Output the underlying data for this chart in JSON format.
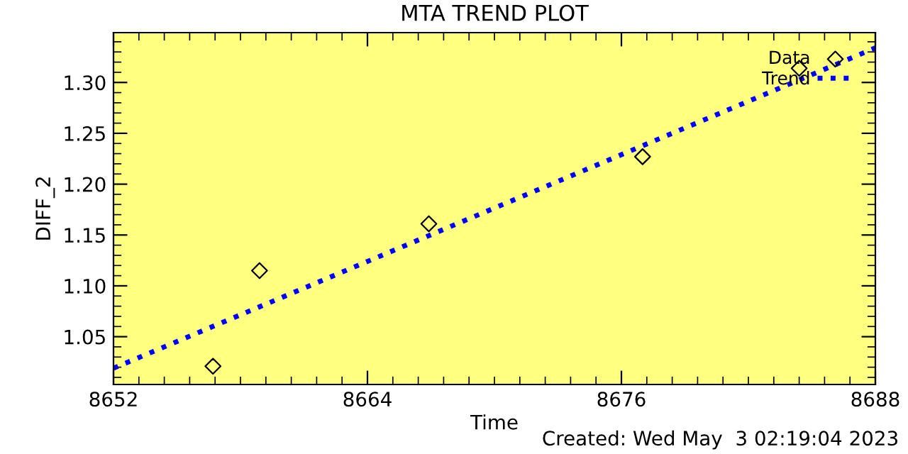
{
  "chart_data": {
    "type": "scatter",
    "title": "MTA TREND PLOT",
    "xlabel": "Time",
    "ylabel": "DIFF_2",
    "annotations": [
      "Created: Wed May  3 02:19:04 2023"
    ],
    "series": [
      {
        "name": "Data",
        "color": "#000000",
        "marker": "diamond",
        "x": [
          8656.7,
          8658.9,
          8666.9,
          8677.0,
          8684.4
        ],
        "values": [
          1.021,
          1.115,
          1.161,
          1.227,
          1.314
        ]
      },
      {
        "name": "Trend",
        "type": "line",
        "color": "#0000ff",
        "line_style": "dotted",
        "x": [
          8652,
          8688
        ],
        "values": [
          1.019,
          1.334
        ]
      }
    ],
    "xlim": [
      8652,
      8688
    ],
    "xticks": [
      8652,
      8664,
      8676,
      8688
    ],
    "ylim": [
      1.003,
      1.349
    ],
    "yticks": [
      {
        "value": 1.05,
        "label": "1.05"
      },
      {
        "value": 1.1,
        "label": "1.10"
      },
      {
        "value": 1.15,
        "label": "1.15"
      },
      {
        "value": 1.2,
        "label": "1.20"
      },
      {
        "value": 1.25,
        "label": "1.25"
      },
      {
        "value": 1.3,
        "label": "1.30"
      }
    ],
    "grid": false,
    "legend": "top right"
  }
}
